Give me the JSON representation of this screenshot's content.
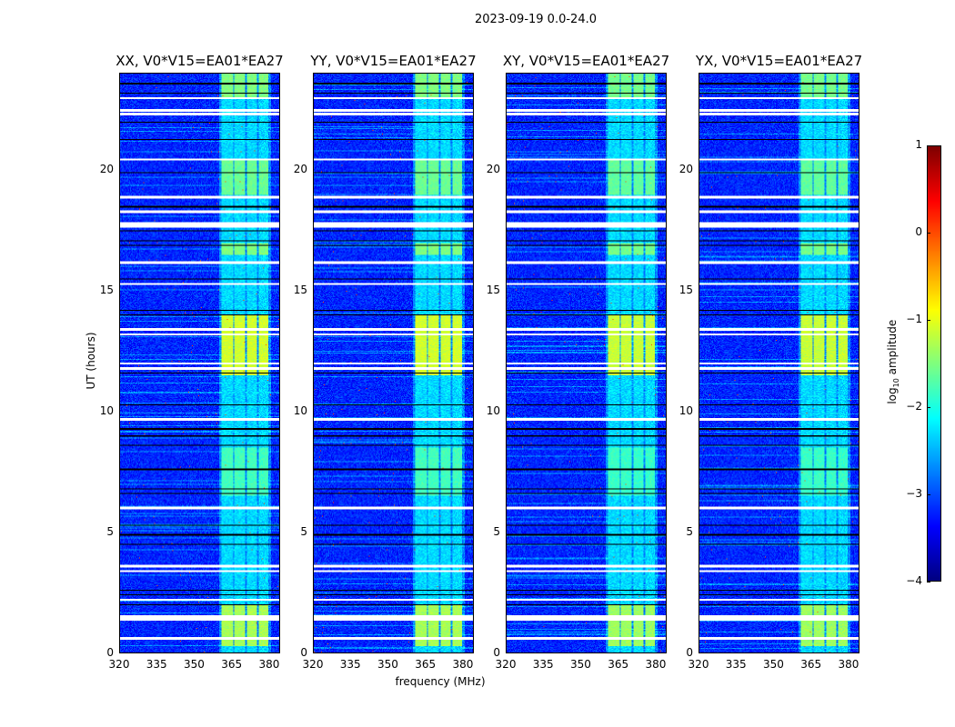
{
  "chart_data": {
    "type": "heatmap",
    "title": "2023-09-19 0.0-24.0",
    "xlabel": "frequency (MHz)",
    "ylabel": "UT (hours)",
    "xlim": [
      320,
      384.4
    ],
    "ylim": [
      0,
      24
    ],
    "xticks": [
      "320",
      "335",
      "350",
      "365",
      "380"
    ],
    "xtick_values": [
      320,
      335,
      350,
      365,
      380
    ],
    "yticks": [
      "0",
      "5",
      "10",
      "15",
      "20"
    ],
    "ytick_values": [
      0,
      5,
      10,
      15,
      20
    ],
    "panels": [
      {
        "title": "XX, V0*V15=EA01*EA27",
        "signal_scale": 1.0
      },
      {
        "title": "YY, V0*V15=EA01*EA27",
        "signal_scale": 1.0
      },
      {
        "title": "XY, V0*V15=EA01*EA27",
        "signal_scale": 0.9
      },
      {
        "title": "YX, V0*V15=EA01*EA27",
        "signal_scale": 0.9
      }
    ],
    "background_log_amplitude": -3.2,
    "rfi_channel_blocks_mhz": [
      [
        361,
        365.5
      ],
      [
        366,
        370.5
      ],
      [
        371,
        375
      ],
      [
        376,
        380
      ]
    ],
    "rfi_channel_log_amplitude": -2.3,
    "bright_epochs_hours": [
      [
        0.3,
        2.0,
        -1.3
      ],
      [
        6.5,
        8.5,
        -1.8
      ],
      [
        11.5,
        14.0,
        -1.1
      ],
      [
        16.5,
        17.0,
        -1.5
      ],
      [
        19.0,
        20.5,
        -1.6
      ],
      [
        23.0,
        24.0,
        -1.5
      ]
    ],
    "flagged_white_hours": [
      23.0,
      22.5,
      22.35,
      20.45,
      18.9,
      18.3,
      17.8,
      17.7,
      16.2,
      15.3,
      13.4,
      13.2,
      12.0,
      11.8,
      9.7,
      6.0,
      3.6,
      3.4,
      2.2,
      1.5,
      1.4,
      0.6
    ],
    "scan_boundaries_black_hours": [
      23.6,
      23.2,
      22.0,
      21.3,
      19.9,
      18.5,
      17.5,
      17.1,
      16.9,
      15.5,
      14.2,
      14.0,
      11.6,
      10.3,
      9.3,
      9.0,
      8.6,
      7.6,
      6.8,
      6.6,
      5.3,
      4.9,
      4.5,
      2.6,
      2.4,
      2.0
    ],
    "colorbar": {
      "label_main": "log",
      "label_sub": "10",
      "label_rest": " amplitude",
      "range": [
        -4,
        1
      ],
      "ticks": [
        "1",
        "0",
        "−1",
        "−2",
        "−3",
        "−4"
      ],
      "tick_values": [
        1,
        0,
        -1,
        -2,
        -3,
        -4
      ],
      "colormap": "jet"
    }
  }
}
